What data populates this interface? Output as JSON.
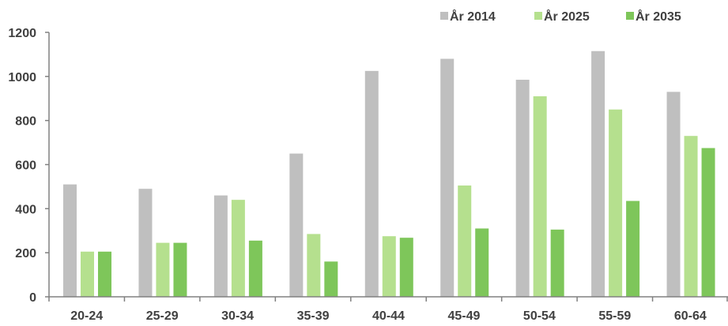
{
  "chart_data": {
    "type": "bar",
    "categories": [
      "20-24",
      "25-29",
      "30-34",
      "35-39",
      "40-44",
      "45-49",
      "50-54",
      "55-59",
      "60-64"
    ],
    "series": [
      {
        "name": "År 2014",
        "color": "#bfbfbf",
        "values": [
          510,
          490,
          460,
          650,
          1025,
          1080,
          985,
          1115,
          930
        ]
      },
      {
        "name": "År 2025",
        "color": "#b5e08e",
        "values": [
          205,
          245,
          440,
          285,
          275,
          505,
          910,
          850,
          730
        ]
      },
      {
        "name": "År 2035",
        "color": "#7ec65a",
        "values": [
          205,
          245,
          255,
          160,
          268,
          310,
          305,
          435,
          675
        ]
      }
    ],
    "yticks": [
      0,
      200,
      400,
      600,
      800,
      1000,
      1200
    ],
    "ylim": [
      0,
      1200
    ],
    "grid": false,
    "legend_position": "top-right"
  }
}
